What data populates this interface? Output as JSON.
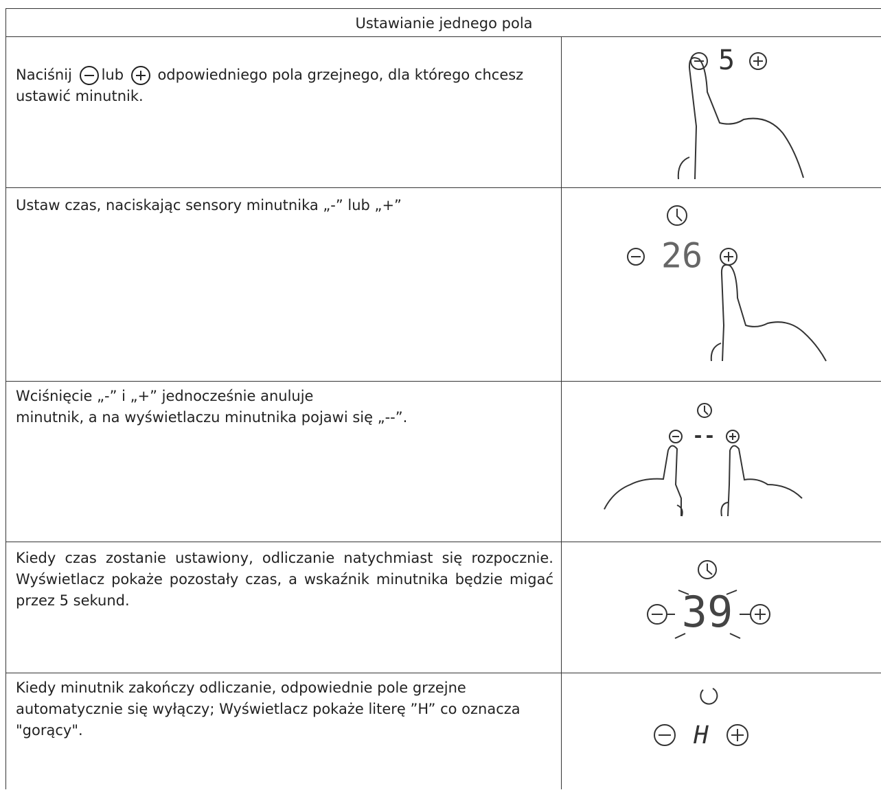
{
  "table": {
    "header": "Ustawianie jednego pola",
    "rows": [
      {
        "text": [
          "Naciśnij",
          "lub",
          "odpowiedniego pola grzejnego, dla którego chcesz ustawić minutnik."
        ],
        "display": "5"
      },
      {
        "text": "Ustaw czas, naciskając sensory minutnika „-” lub „+”",
        "display": "26"
      },
      {
        "text": [
          "Wciśnięcie „-” i „+” jednocześnie anuluje",
          "minutnik, a na wyświetlaczu minutnika pojawi się „--”."
        ],
        "display": "--"
      },
      {
        "text": "Kiedy czas zostanie ustawiony, odliczanie natychmiast się rozpocznie. Wyświetlacz pokaże pozostały czas, a wskaźnik minutnika będzie migać przez 5 sekund.",
        "display": "39"
      },
      {
        "text": "Kiedy minutnik zakończy odliczanie, odpowiednie pole grzejne automatycznie się wyłączy; Wyświetlacz pokaże literę ”H” co oznacza \"gorący\".",
        "display": "H"
      }
    ]
  }
}
